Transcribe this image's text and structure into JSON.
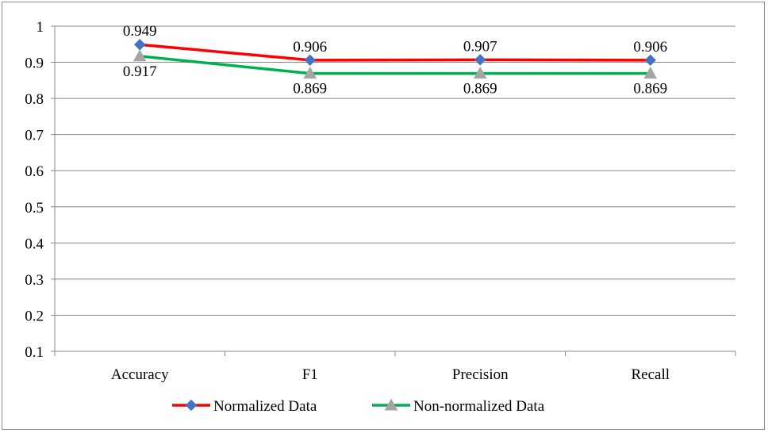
{
  "chart_data": {
    "type": "line",
    "title": "",
    "xlabel": "",
    "ylabel": "",
    "categories": [
      "Accuracy",
      "F1",
      "Precision",
      "Recall"
    ],
    "y_ticks": [
      "0.1",
      "0.2",
      "0.3",
      "0.4",
      "0.5",
      "0.6",
      "0.7",
      "0.8",
      "0.9",
      "1"
    ],
    "ylim": [
      0.1,
      1
    ],
    "grid": true,
    "legend_position": "bottom",
    "series": [
      {
        "name": "Normalized Data",
        "values": [
          0.949,
          0.906,
          0.907,
          0.906
        ],
        "labels": [
          "0.949",
          "0.906",
          "0.907",
          "0.906"
        ],
        "label_position": "above",
        "line_color": "#ff0000",
        "marker": "diamond",
        "marker_color": "#4472c4"
      },
      {
        "name": "Non-normalized Data",
        "values": [
          0.917,
          0.869,
          0.869,
          0.869
        ],
        "labels": [
          "0.917",
          "0.869",
          "0.869",
          "0.869"
        ],
        "label_position": "below",
        "line_color": "#00b050",
        "marker": "triangle",
        "marker_color": "#a5a5a5"
      }
    ]
  }
}
